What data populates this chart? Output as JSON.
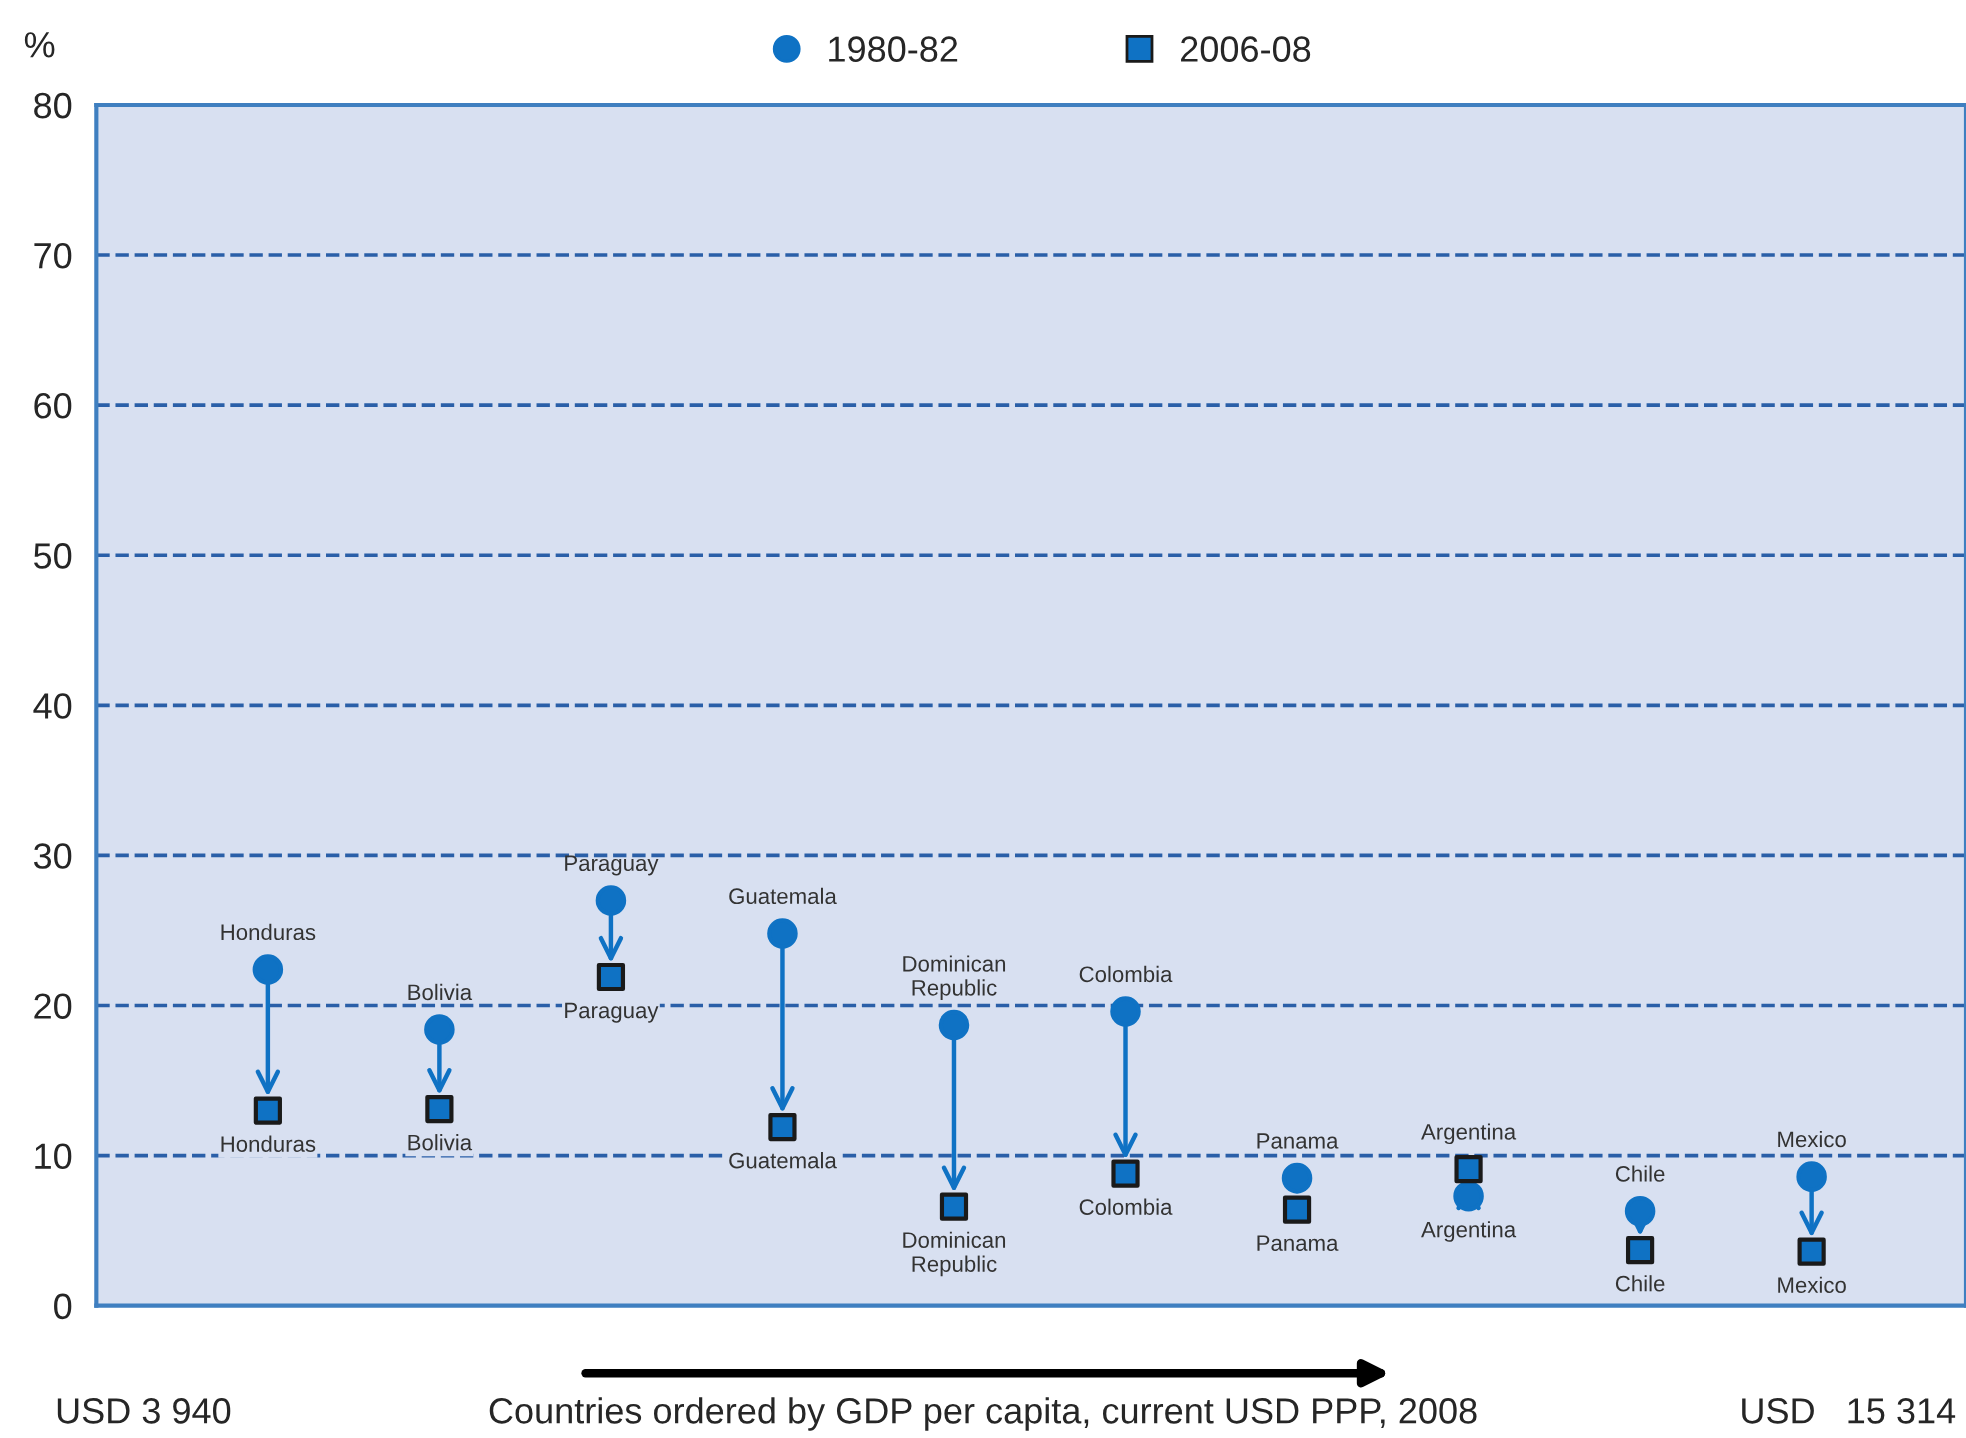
{
  "chart_data": {
    "type": "scatter",
    "ylabel": "%",
    "xlabel": "Countries ordered by GDP per capita, current USD PPP, 2008",
    "categories": [
      "Honduras",
      "Bolivia",
      "Paraguay",
      "Guatemala",
      "Dominican\nRepublic",
      "Colombia",
      "Panama",
      "Argentina",
      "Chile",
      "Mexico"
    ],
    "series": [
      {
        "name": "1980-82",
        "color": "#0f72c4",
        "marker": "circle",
        "values": [
          22.4,
          18.4,
          27.0,
          24.8,
          18.7,
          19.6,
          8.5,
          7.3,
          6.3,
          8.6
        ]
      },
      {
        "name": "2006-08",
        "color": "#0f72c4",
        "marker": "square",
        "values": [
          13.0,
          13.1,
          21.9,
          11.9,
          6.6,
          8.8,
          6.4,
          9.1,
          3.7,
          3.6
        ]
      }
    ],
    "ylim": [
      0,
      80
    ],
    "yticks": [
      0,
      10,
      20,
      30,
      40,
      50,
      60,
      70,
      80
    ],
    "grid": "y",
    "legend": "top",
    "tick_labels": "y",
    "annotations": [
      "USD 3 940",
      "USD   15 314"
    ]
  }
}
